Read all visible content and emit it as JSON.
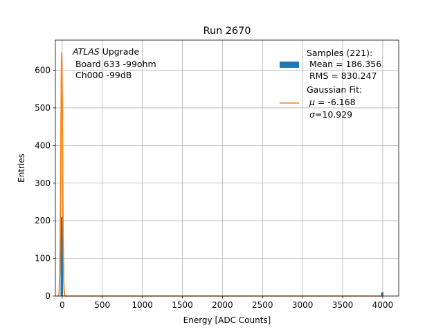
{
  "chart_data": {
    "type": "histogram",
    "title": "Run 2670",
    "xlabel": "Energy [ADC Counts]",
    "ylabel": "Entries",
    "xlim": [
      -85,
      4200
    ],
    "ylim": [
      0,
      680
    ],
    "x_ticks": [
      0,
      500,
      1000,
      1500,
      2000,
      2500,
      3000,
      3500,
      4000
    ],
    "y_ticks": [
      0,
      100,
      200,
      300,
      400,
      500,
      600
    ],
    "grid": true,
    "annotation": {
      "italic": "ATLAS",
      "rest": " Upgrade",
      "line2": " Board 633 -99ohm",
      "line3": " Ch000 -99dB"
    },
    "legend": {
      "position": "top-right",
      "samples": {
        "line1": "Samples (221):",
        "line2": " Mean = 186.356",
        "line3": " RMS = 830.247",
        "color": "#1f77b4"
      },
      "fit": {
        "line1": "Gaussian Fit:",
        "mu_sym": "μ",
        "mu_rest": " = -6.168",
        "sigma_sym": "σ",
        "sigma_rest": "=10.929",
        "color": "#ff7f0e"
      }
    },
    "histogram": {
      "bins": [
        {
          "x0": -20,
          "x1": 10,
          "value": 210
        },
        {
          "x0": 3980,
          "x1": 4010,
          "value": 10
        }
      ],
      "color": "#1f77b4"
    },
    "gaussian": {
      "mu": -6.168,
      "sigma": 10.929,
      "peak": 648,
      "color": "#ff7f0e"
    }
  }
}
